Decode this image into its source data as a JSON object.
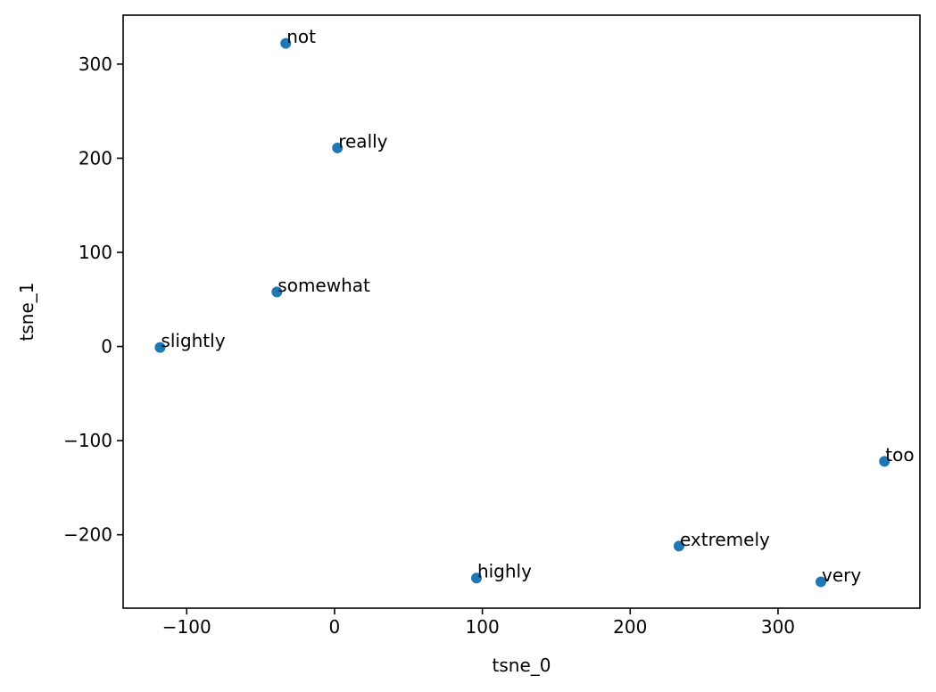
{
  "chart_data": {
    "type": "scatter",
    "xlabel": "tsne_0",
    "ylabel": "tsne_1",
    "xlim": [
      -143,
      396
    ],
    "ylim": [
      -278,
      352
    ],
    "xticks": [
      -100,
      0,
      100,
      200,
      300
    ],
    "yticks": [
      -200,
      -100,
      0,
      100,
      200,
      300
    ],
    "xtick_labels": [
      "−100",
      "0",
      "100",
      "200",
      "300"
    ],
    "ytick_labels": [
      "−200",
      "−100",
      "0",
      "100",
      "200",
      "300"
    ],
    "grid": false,
    "point_color": "#1f77b4",
    "points": [
      {
        "label": "not",
        "x": -33,
        "y": 322
      },
      {
        "label": "really",
        "x": 2,
        "y": 211
      },
      {
        "label": "somewhat",
        "x": -39,
        "y": 58
      },
      {
        "label": "slightly",
        "x": -118,
        "y": -1
      },
      {
        "label": "too",
        "x": 372,
        "y": -122
      },
      {
        "label": "extremely",
        "x": 233,
        "y": -212
      },
      {
        "label": "highly",
        "x": 96,
        "y": -246
      },
      {
        "label": "very",
        "x": 329,
        "y": -250
      }
    ]
  }
}
